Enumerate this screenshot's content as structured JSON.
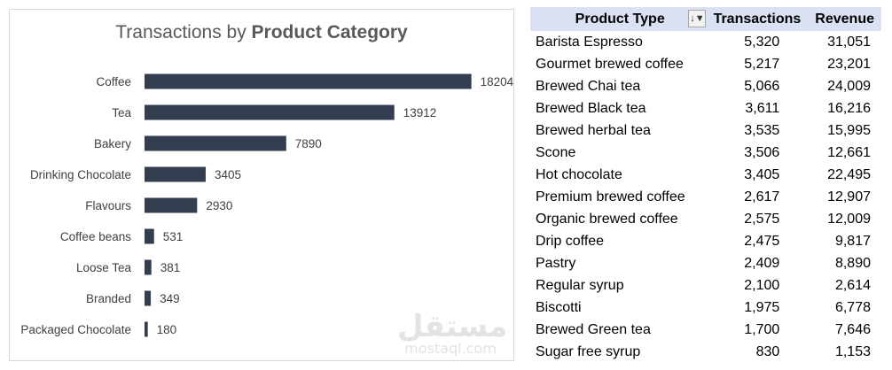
{
  "chart_data": {
    "type": "bar",
    "orientation": "horizontal",
    "title_prefix": "Transactions by ",
    "title_bold": "Product Category",
    "categories": [
      "Coffee",
      "Tea",
      "Bakery",
      "Drinking Chocolate",
      "Flavours",
      "Coffee beans",
      "Loose Tea",
      "Branded",
      "Packaged Chocolate"
    ],
    "values": [
      18204,
      13912,
      7890,
      3405,
      2930,
      531,
      381,
      349,
      180
    ],
    "xlim": [
      0,
      20000
    ],
    "bar_color": "#323d50",
    "grid": false,
    "data_labels": true
  },
  "table": {
    "headers": {
      "type": "Product Type",
      "transactions": "Transactions",
      "revenue": "Revenue"
    },
    "header_color": "#d9e1f2",
    "filter_icon": "sort-filter-icon",
    "rows": [
      {
        "type": "Barista Espresso",
        "transactions": "5,320",
        "revenue": "31,051"
      },
      {
        "type": "Gourmet brewed coffee",
        "transactions": "5,217",
        "revenue": "23,201"
      },
      {
        "type": "Brewed Chai tea",
        "transactions": "5,066",
        "revenue": "24,009"
      },
      {
        "type": "Brewed Black tea",
        "transactions": "3,611",
        "revenue": "16,216"
      },
      {
        "type": "Brewed herbal tea",
        "transactions": "3,535",
        "revenue": "15,995"
      },
      {
        "type": "Scone",
        "transactions": "3,506",
        "revenue": "12,661"
      },
      {
        "type": "Hot chocolate",
        "transactions": "3,405",
        "revenue": "22,495"
      },
      {
        "type": "Premium brewed coffee",
        "transactions": "2,617",
        "revenue": "12,907"
      },
      {
        "type": "Organic brewed coffee",
        "transactions": "2,575",
        "revenue": "12,009"
      },
      {
        "type": "Drip coffee",
        "transactions": "2,475",
        "revenue": "9,817"
      },
      {
        "type": "Pastry",
        "transactions": "2,409",
        "revenue": "8,890"
      },
      {
        "type": "Regular syrup",
        "transactions": "2,100",
        "revenue": "2,614"
      },
      {
        "type": "Biscotti",
        "transactions": "1,975",
        "revenue": "6,778"
      },
      {
        "type": "Brewed Green tea",
        "transactions": "1,700",
        "revenue": "7,646"
      },
      {
        "type": "Sugar free syrup",
        "transactions": "830",
        "revenue": "1,153"
      }
    ]
  },
  "watermark": {
    "logo": "مستقل",
    "text": "mostaql.com"
  }
}
